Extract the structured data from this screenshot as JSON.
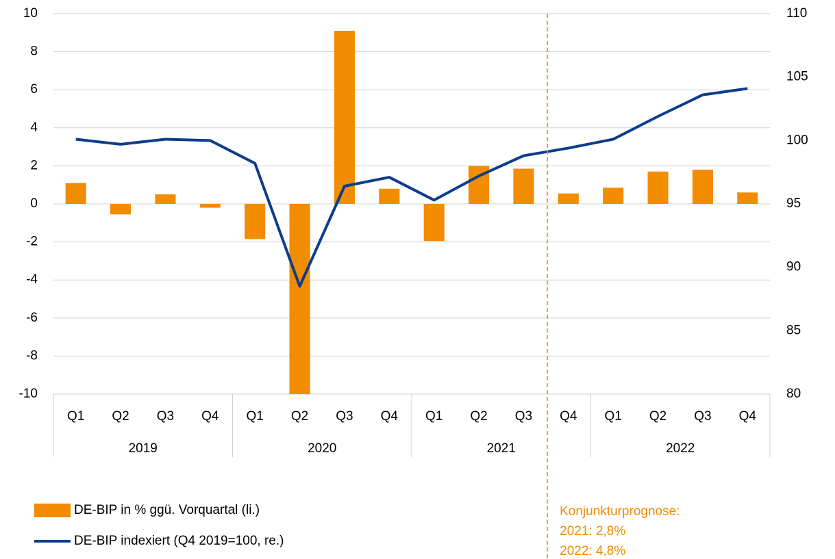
{
  "chart_data": {
    "type": "combo",
    "categories": [
      "Q1",
      "Q2",
      "Q3",
      "Q4",
      "Q1",
      "Q2",
      "Q3",
      "Q4",
      "Q1",
      "Q2",
      "Q3",
      "Q4",
      "Q1",
      "Q2",
      "Q3",
      "Q4"
    ],
    "group_labels": [
      "2019",
      "2020",
      "2021",
      "2022"
    ],
    "series": [
      {
        "name": "DE-BIP in % ggü. Vorquartal (li.)",
        "type": "bar",
        "color": "#f28c00",
        "values": [
          1.1,
          -0.55,
          0.5,
          -0.2,
          -1.85,
          -10,
          9.1,
          0.8,
          -1.95,
          2.0,
          1.85,
          0.55,
          0.85,
          1.7,
          1.8,
          0.6
        ]
      },
      {
        "name": "DE-BIP indexiert (Q4 2019=100, re.)",
        "type": "line",
        "axis": "y2",
        "color": "#0d3c8c",
        "values": [
          100.1,
          99.7,
          100.1,
          100.0,
          98.2,
          88.5,
          96.4,
          97.1,
          95.3,
          97.2,
          98.8,
          99.4,
          100.1,
          101.9,
          103.6,
          104.1
        ]
      }
    ],
    "ylim": [
      -10,
      10
    ],
    "yticks": [
      -10,
      -8,
      -6,
      -4,
      -2,
      0,
      2,
      4,
      6,
      8,
      10
    ],
    "y2lim": [
      80,
      110
    ],
    "y2ticks": [
      80,
      85,
      90,
      95,
      100,
      105,
      110
    ],
    "grid": true,
    "annotation": {
      "lines": [
        "Konjunkturprognose:",
        "2021: 2,8%",
        "2022: 4,8%"
      ],
      "color": "#f28c00",
      "x_index": 11
    }
  }
}
